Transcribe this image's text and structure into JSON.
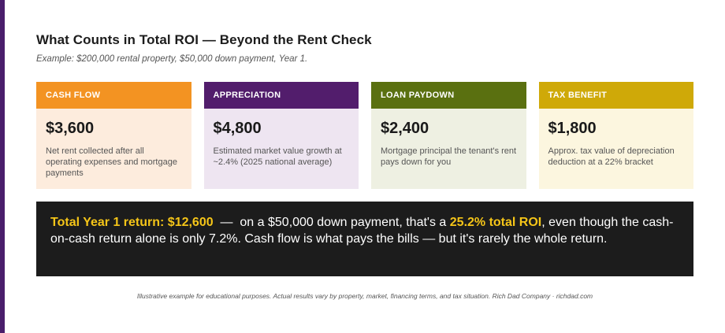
{
  "header": {
    "title": "What Counts in Total ROI — Beyond the Rent Check",
    "subtitle": "Example: $200,000 rental property, $50,000 down payment, Year 1."
  },
  "cards": [
    {
      "label": "CASH FLOW",
      "value": "$3,600",
      "description": "Net rent collected after all operating expenses and mortgage payments",
      "head_color": "#f39322",
      "body_color": "#fdecdd"
    },
    {
      "label": "APPRECIATION",
      "value": "$4,800",
      "description": "Estimated market value growth at ~2.4% (2025 national average)",
      "head_color": "#521d6c",
      "body_color": "#eee5f1"
    },
    {
      "label": "LOAN PAYDOWN",
      "value": "$2,400",
      "description": "Mortgage principal the tenant's rent pays down for you",
      "head_color": "#5a7010",
      "body_color": "#eef0e2"
    },
    {
      "label": "TAX BENEFIT",
      "value": "$1,800",
      "description": "Approx. tax value of depreciation deduction at a 22% bracket",
      "head_color": "#cfa908",
      "body_color": "#fcf6df"
    }
  ],
  "summary": {
    "lead": "Total Year 1 return: $12,600",
    "part1": "  —  on a $50,000 down payment, that's a ",
    "roi": "25.2% total ROI",
    "part2": ", even though the cash-on-cash return alone is only 7.2%. Cash flow is what pays the bills — but it's rarely the whole return."
  },
  "footnote": "Illustrative example for educational purposes. Actual results vary by property, market, financing terms, and tax situation. Rich Dad Company · richdad.com",
  "colors": {
    "accent_bar": "#4a1e6b",
    "highlight": "#f5c518",
    "summary_bg": "#1c1c1c"
  }
}
